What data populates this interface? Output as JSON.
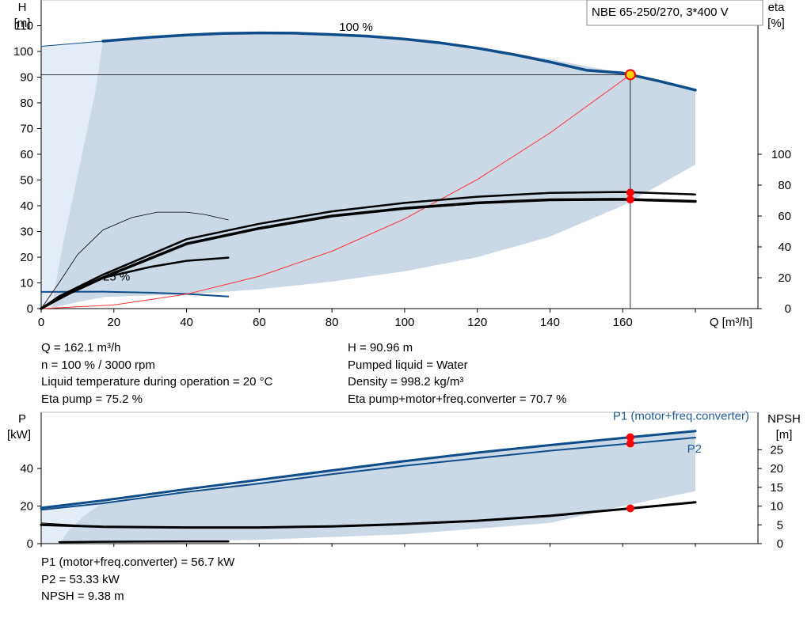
{
  "pump_label": "NBE 65-250/270, 3*400 V",
  "colors": {
    "envelope": "#cbd8e5",
    "envelope_light": "#e4edf7",
    "blue": "#0f4c8a",
    "black": "#000000",
    "red": "#ff3333",
    "marker": "#ff0000",
    "marker_yellow": "#ffd400",
    "label_blue": "#1f5c99"
  },
  "info_top": {
    "q": "Q = 162.1 m³/h",
    "n": "n = 100 % / 3000 rpm",
    "temp": "Liquid temperature during operation = 20 °C",
    "eta_pump": "Eta pump = 75.2 %",
    "h": "H = 90.96 m",
    "liquid": "Pumped liquid = Water",
    "density": "Density = 998.2 kg/m³",
    "eta_total": "Eta pump+motor+freq.converter = 70.7 %"
  },
  "info_bottom": {
    "p1": "P1 (motor+freq.converter) = 56.7 kW",
    "p2": "P2 = 53.33 kW",
    "npsh": "NPSH = 9.38 m"
  },
  "chart_data": [
    {
      "type": "line",
      "name": "head-efficiency",
      "xlabel": "Q [m³/h]",
      "ylabel_left": [
        "H",
        "[m]"
      ],
      "ylabel_right": [
        "eta",
        "[%]"
      ],
      "xlim": [
        0,
        180
      ],
      "ylim": [
        0,
        120
      ],
      "ylim_right": [
        0,
        200
      ],
      "x_ticks": [
        0,
        20,
        40,
        60,
        80,
        100,
        120,
        140,
        160
      ],
      "y_ticks": [
        0,
        10,
        20,
        30,
        40,
        50,
        60,
        70,
        80,
        90,
        100,
        110
      ],
      "y_ticks_right": [
        0,
        20,
        40,
        60,
        80,
        100
      ],
      "grid": false,
      "curve_labels": [
        {
          "text": "100 %",
          "x": 82,
          "y": 108
        },
        {
          "text": "25 %",
          "x": 17,
          "y": 11
        }
      ],
      "series": [
        {
          "id": "envelope_min",
          "axis": "left",
          "x": [
            0,
            2,
            5,
            8,
            12,
            17,
            20,
            40,
            60,
            80,
            100,
            120,
            140,
            160,
            180
          ],
          "y": [
            0,
            1,
            2,
            2.8,
            3.5,
            4,
            4.2,
            5,
            5,
            5,
            5,
            5,
            5,
            5,
            5
          ]
        },
        {
          "id": "envelope_max",
          "axis": "left",
          "x": [
            0,
            17,
            40,
            60,
            80,
            100,
            120,
            140,
            160,
            180
          ],
          "y": [
            102,
            104,
            106.5,
            107,
            106.5,
            105,
            101.5,
            97,
            91.5,
            85
          ]
        },
        {
          "id": "envelope_bottom",
          "axis": "left",
          "x": [
            17,
            40,
            60,
            80,
            100,
            120,
            140,
            160,
            180
          ],
          "y": [
            4.5,
            5.5,
            7.5,
            10.5,
            14.5,
            20,
            28,
            40,
            56
          ]
        },
        {
          "id": "head_100",
          "axis": "left",
          "x": [
            17,
            30,
            40,
            50,
            60,
            70,
            80,
            90,
            100,
            110,
            120,
            130,
            140,
            150,
            160,
            170,
            180
          ],
          "y": [
            104,
            105.5,
            106.4,
            107,
            107.2,
            107.1,
            106.6,
            105.9,
            104.8,
            103.3,
            101.3,
            98.8,
            95.9,
            92.7,
            91.6,
            88.5,
            85
          ]
        },
        {
          "id": "head_100_ext",
          "axis": "left",
          "x": [
            0,
            17
          ],
          "y": [
            102,
            104
          ]
        },
        {
          "id": "head_25",
          "axis": "left",
          "x": [
            0,
            17,
            30,
            40,
            51.5
          ],
          "y": [
            6.5,
            6.6,
            6.2,
            5.7,
            4.7
          ]
        },
        {
          "id": "system_curve",
          "axis": "left",
          "x": [
            0,
            20,
            40,
            60,
            80,
            100,
            120,
            140,
            162.1
          ],
          "y": [
            0,
            1.4,
            5.6,
            12.6,
            22.3,
            34.9,
            50.2,
            68.3,
            90.96
          ]
        },
        {
          "id": "eta_pump",
          "axis": "right",
          "x": [
            0,
            5,
            17,
            20,
            40,
            60,
            80,
            100,
            120,
            140,
            160,
            180
          ],
          "y": [
            0,
            8,
            22,
            25,
            45,
            55,
            63,
            68.5,
            72.5,
            75,
            75.6,
            74
          ]
        },
        {
          "id": "eta_total",
          "axis": "right",
          "x": [
            0,
            5,
            17,
            20,
            40,
            60,
            80,
            100,
            120,
            140,
            160,
            180
          ],
          "y": [
            0,
            7,
            20,
            23,
            42,
            52,
            60,
            65,
            68.5,
            70.5,
            70.8,
            69.5
          ]
        },
        {
          "id": "eta_25",
          "axis": "right",
          "x": [
            0,
            8,
            17,
            30,
            40,
            51.5
          ],
          "y": [
            0,
            10,
            20,
            27,
            31,
            33
          ]
        },
        {
          "id": "eta_25_thin",
          "axis": "right",
          "x": [
            0,
            5,
            10,
            17,
            25,
            32,
            40,
            45,
            51.5
          ],
          "y": [
            0,
            17,
            35,
            51,
            59,
            62.5,
            62.5,
            61,
            57.5
          ]
        }
      ],
      "duty_point": {
        "q": 162.1,
        "h": 90.96,
        "eta_pump": 75.2,
        "eta_total": 70.7
      }
    },
    {
      "type": "line",
      "name": "power-npsh",
      "ylabel_left": [
        "P",
        "[kW]"
      ],
      "ylabel_right": [
        "NPSH",
        "[m]"
      ],
      "xlim": [
        0,
        180
      ],
      "ylim": [
        0,
        70
      ],
      "ylim_right": [
        0,
        35
      ],
      "y_ticks": [
        0,
        20,
        40
      ],
      "y_ticks_right": [
        0,
        5,
        10,
        15,
        20,
        25
      ],
      "series_labels": [
        {
          "text": "P1 (motor+freq.converter)",
          "x": 148,
          "y": 66
        },
        {
          "text": "P2",
          "x": 177,
          "y": 51
        }
      ],
      "series": [
        {
          "id": "p_env_top",
          "axis": "left",
          "x": [
            0,
            17,
            60,
            100,
            140,
            180
          ],
          "y": [
            19,
            22,
            33,
            44,
            53,
            60
          ]
        },
        {
          "id": "p_env_bottom",
          "axis": "left",
          "x": [
            0,
            17,
            60,
            100,
            140,
            160,
            180
          ],
          "y": [
            0,
            0.5,
            2,
            5,
            11,
            20,
            28
          ]
        },
        {
          "id": "p1",
          "axis": "left",
          "x": [
            0,
            17,
            40,
            60,
            80,
            100,
            120,
            140,
            162.1,
            180
          ],
          "y": [
            19,
            23,
            29,
            34,
            39,
            44,
            48.5,
            52.5,
            56.7,
            60
          ]
        },
        {
          "id": "p2",
          "axis": "left",
          "x": [
            0,
            17,
            40,
            60,
            80,
            100,
            120,
            140,
            162.1,
            180
          ],
          "y": [
            18,
            21.5,
            27.5,
            32,
            37,
            41.5,
            45.5,
            49.5,
            53.33,
            56.5
          ]
        },
        {
          "id": "p_25",
          "axis": "left",
          "x": [
            5,
            17,
            30,
            40,
            51.5
          ],
          "y": [
            0.8,
            1,
            1.1,
            1.2,
            1.2
          ]
        },
        {
          "id": "npsh",
          "axis": "right",
          "x": [
            0,
            17,
            40,
            60,
            80,
            100,
            120,
            140,
            162.1,
            180
          ],
          "y": [
            5,
            4.5,
            4.3,
            4.3,
            4.6,
            5.2,
            6.1,
            7.4,
            9.38,
            11
          ]
        }
      ],
      "duty_point": {
        "q": 162.1,
        "p1": 56.7,
        "p2": 53.33,
        "npsh": 9.38
      }
    }
  ]
}
